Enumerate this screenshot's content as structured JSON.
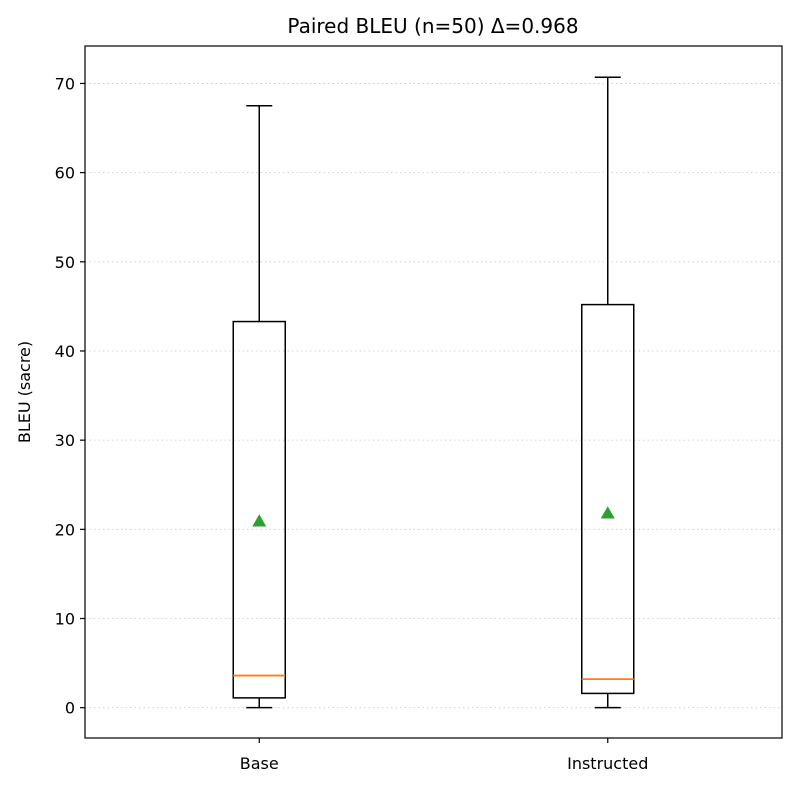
{
  "chart_data": {
    "type": "box",
    "title": "Paired BLEU (n=50) Δ=0.968",
    "xlabel": "",
    "ylabel": "BLEU (sacre)",
    "categories": [
      "Base",
      "Instructed"
    ],
    "ylim": [
      -3.4,
      74.2
    ],
    "yticks": [
      0,
      10,
      20,
      30,
      40,
      50,
      60,
      70
    ],
    "grid": "y-dotted",
    "boxes": [
      {
        "label": "Base",
        "whisker_low": 0.0,
        "q1": 1.1,
        "median": 3.6,
        "q3": 43.3,
        "whisker_high": 67.5,
        "mean": 20.9
      },
      {
        "label": "Instructed",
        "whisker_low": 0.0,
        "q1": 1.6,
        "median": 3.2,
        "q3": 45.2,
        "whisker_high": 70.7,
        "mean": 21.8
      }
    ],
    "colors": {
      "median": "#ff7f0e",
      "mean": "#2ca02c",
      "box": "#000000"
    }
  }
}
